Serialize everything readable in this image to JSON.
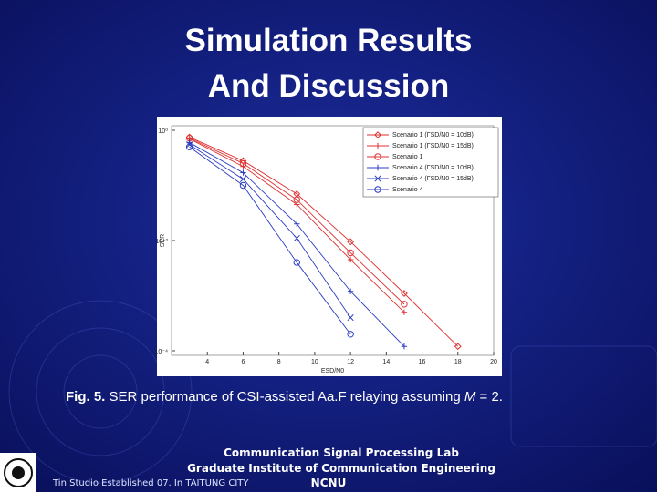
{
  "slide": {
    "title": [
      "Simulation Results",
      "And Discussion"
    ],
    "caption": {
      "label": "Fig. 5.",
      "text": "SER performance of CSI-assisted Aa.F relaying assuming",
      "var": "M",
      "rest": "= 2."
    },
    "footer": [
      "Communication Signal Processing Lab",
      "Graduate Institute of Communication Engineering",
      "NCNU"
    ],
    "studio": "Tin Studio Established 07. In TAITUNG CITY"
  },
  "chart_data": {
    "type": "line",
    "x_label": "ESD/N0",
    "y_label": "SER",
    "log_y": true,
    "xlim": [
      2,
      20
    ],
    "xticks": [
      4,
      6,
      8,
      10,
      12,
      14,
      16,
      18,
      20
    ],
    "ylim": [
      0.0001,
      1
    ],
    "yticks": [
      {
        "value": 1,
        "label": "10⁰"
      },
      {
        "value": 0.01,
        "label": "10⁻²"
      },
      {
        "value": 0.0001,
        "label": "10⁻⁴"
      }
    ],
    "x": [
      3,
      6,
      9,
      12,
      15,
      18
    ],
    "series": [
      {
        "name": "Scenario 1 (ΓSD/N0 = 10dB)",
        "color": "#e03030",
        "marker": "diamond",
        "values": [
          0.75,
          0.28,
          0.07,
          0.0095,
          0.0011,
          0.00012
        ]
      },
      {
        "name": "Scenario 1 (ΓSD/N0 = 15dB)",
        "color": "#e03030",
        "marker": "plus",
        "values": [
          0.7,
          0.22,
          0.045,
          0.0045,
          0.0005,
          null
        ]
      },
      {
        "name": "Scenario 1",
        "color": "#e03030",
        "marker": "circle",
        "values": [
          0.72,
          0.25,
          0.055,
          0.006,
          0.0007,
          null
        ]
      },
      {
        "name": "Scenario 4 (ΓSD/N0 = 10dB)",
        "color": "#2a3cc0",
        "marker": "plus",
        "values": [
          0.6,
          0.17,
          0.02,
          0.0012,
          0.00012,
          null
        ]
      },
      {
        "name": "Scenario 4 (ΓSD/N0 = 15dB)",
        "color": "#2a3cc0",
        "marker": "cross",
        "values": [
          0.55,
          0.13,
          0.011,
          0.0004,
          null,
          null
        ]
      },
      {
        "name": "Scenario 4",
        "color": "#2a3cc0",
        "marker": "circle",
        "values": [
          0.5,
          0.1,
          0.004,
          0.0002,
          null,
          null
        ]
      }
    ]
  }
}
